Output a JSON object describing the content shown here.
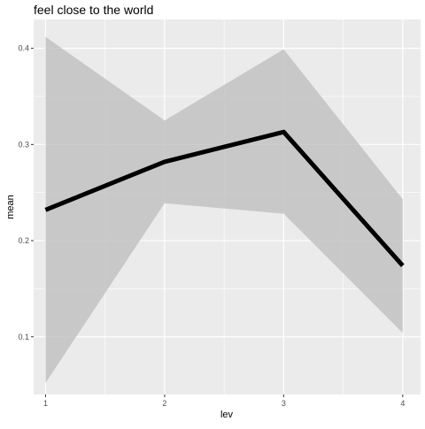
{
  "chart_data": {
    "type": "line",
    "title": "feel close to the world",
    "xlabel": "lev",
    "ylabel": "mean",
    "x": [
      1,
      2,
      3,
      4
    ],
    "series": [
      {
        "values": [
          0.232,
          0.282,
          0.313,
          0.174
        ],
        "lower": [
          0.052,
          0.239,
          0.228,
          0.104
        ],
        "upper": [
          0.412,
          0.325,
          0.399,
          0.243
        ]
      }
    ],
    "xlim": [
      0.9,
      4.15
    ],
    "ylim": [
      0.04,
      0.43
    ],
    "x_ticks": [
      "1",
      "2",
      "3",
      "4"
    ],
    "y_ticks": [
      "0.1",
      "0.2",
      "0.3",
      "0.4"
    ],
    "grid": true,
    "colors": {
      "panel": "#ebebeb",
      "grid": "#ffffff",
      "line": "#000000",
      "ribbon": "#bfbfbf"
    }
  }
}
